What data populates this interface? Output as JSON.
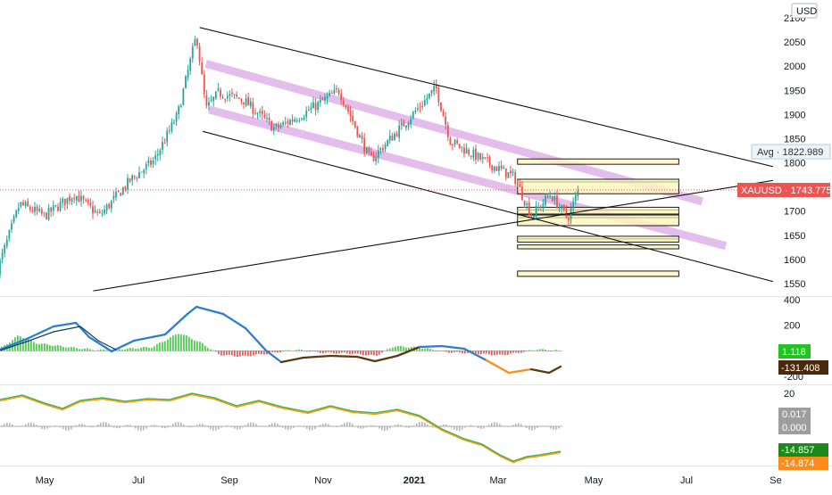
{
  "currency": "USD",
  "chart_data": {
    "type": "candlestick",
    "symbol": "XAUUSD",
    "last_price": "1743.775",
    "avg_label": "Avg",
    "avg_value": "1822.989",
    "avg_price": 1822.989,
    "current_price": 1743.775,
    "price_axis": {
      "ylim": [
        1525,
        2125
      ],
      "ticks": [
        2100,
        2050,
        2000,
        1950,
        1900,
        1850,
        1800,
        1700,
        1650,
        1600,
        1550
      ]
    },
    "x_ticks": [
      "May",
      "Jul",
      "Sep",
      "Nov",
      "2021",
      "Mar",
      "May",
      "Jul",
      "Se"
    ],
    "price_keypoints": [
      [
        "2020-04-01",
        1580
      ],
      [
        "2020-04-15",
        1715
      ],
      [
        "2020-05-01",
        1690
      ],
      [
        "2020-05-20",
        1735
      ],
      [
        "2020-06-05",
        1690
      ],
      [
        "2020-06-25",
        1765
      ],
      [
        "2020-07-10",
        1805
      ],
      [
        "2020-07-25",
        1900
      ],
      [
        "2020-08-06",
        2065
      ],
      [
        "2020-08-12",
        1910
      ],
      [
        "2020-08-20",
        1945
      ],
      [
        "2020-09-05",
        1930
      ],
      [
        "2020-09-25",
        1870
      ],
      [
        "2020-10-15",
        1905
      ],
      [
        "2020-11-05",
        1950
      ],
      [
        "2020-11-25",
        1805
      ],
      [
        "2020-12-15",
        1875
      ],
      [
        "2021-01-06",
        1955
      ],
      [
        "2021-01-15",
        1845
      ],
      [
        "2021-02-05",
        1805
      ],
      [
        "2021-02-25",
        1770
      ],
      [
        "2021-03-08",
        1690
      ],
      [
        "2021-03-20",
        1735
      ],
      [
        "2021-03-31",
        1685
      ],
      [
        "2021-04-07",
        1743.775
      ]
    ],
    "zones": [
      [
        1797,
        1808
      ],
      [
        1736,
        1766
      ],
      [
        1694,
        1708
      ],
      [
        1670,
        1692
      ],
      [
        1636,
        1648
      ],
      [
        1622,
        1630
      ],
      [
        1565,
        1576
      ]
    ],
    "trendlines": [
      [
        [
          "2020-08-08",
          2080
        ],
        [
          "2021-08-31",
          1775
        ]
      ],
      [
        [
          "2020-08-10",
          1865
        ],
        [
          "2021-08-20",
          1545
        ]
      ],
      [
        [
          "2020-06-01",
          1535
        ],
        [
          "2021-08-31",
          1775
        ]
      ]
    ],
    "channel_bands": [
      [
        [
          "2020-08-12",
          2005
        ],
        [
          "2021-06-25",
          1720
        ]
      ],
      [
        [
          "2020-08-14",
          1910
        ],
        [
          "2021-07-10",
          1628
        ]
      ]
    ],
    "indicator_1": {
      "ticks": [
        400,
        200,
        -200
      ],
      "ylim": [
        -250,
        420
      ],
      "histogram_value": "1.118",
      "line_value": "-131.408"
    },
    "indicator_2": {
      "ticks": [
        20
      ],
      "ylim": [
        -32,
        25
      ],
      "level_1": "0.017",
      "level_2": "0.000",
      "line_1_value": "-14.857",
      "line_2_value": "-14.874"
    }
  },
  "colors": {
    "up": "#26a69a",
    "down": "#ef5350",
    "zone_fill": "#fff5c2",
    "zone_stroke": "#1b1b1b",
    "band": "#d9a8e6",
    "price_line": "#ef5350",
    "macd_blue": "#2a7fd4",
    "macd_brown": "#5a3a10",
    "macd_orange": "#ff8c1a",
    "hist_up": "#22c422",
    "hist_down": "#e63939",
    "green_line": "#4caf50",
    "orange_line": "#ff9800"
  }
}
